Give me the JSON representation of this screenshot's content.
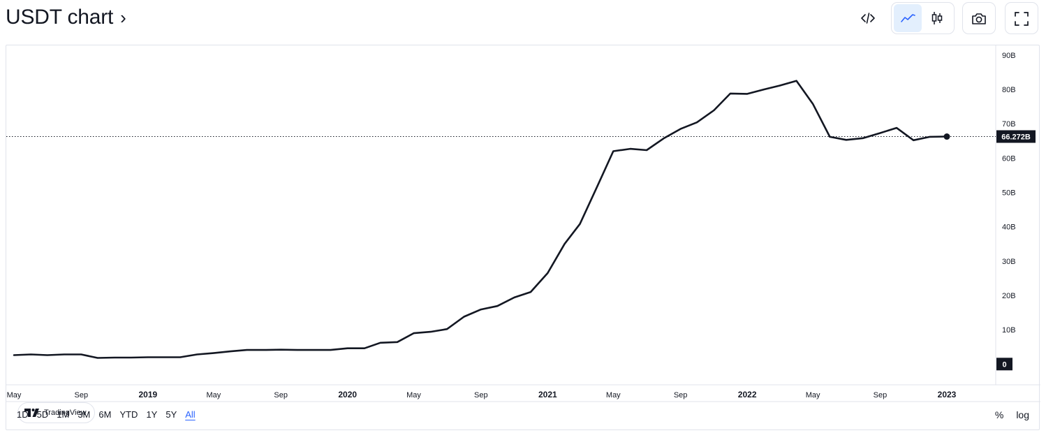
{
  "header": {
    "title": "USDT chart",
    "chevron": "›"
  },
  "toolbar": {
    "icons": [
      "embed-code-icon",
      "line-chart-icon",
      "candlestick-icon",
      "camera-icon",
      "fullscreen-icon"
    ],
    "accent": "#2962ff"
  },
  "watermark": {
    "text": "TradingView"
  },
  "range_buttons": [
    "1D",
    "5D",
    "1M",
    "3M",
    "6M",
    "YTD",
    "1Y",
    "5Y",
    "All"
  ],
  "active_range": "All",
  "scale_controls": {
    "percent": "%",
    "log": "log"
  },
  "chart_data": {
    "type": "line",
    "series": [
      {
        "color": "#131722",
        "x": [
          "2018-05-01",
          "2018-06-01",
          "2018-07-01",
          "2018-08-01",
          "2018-09-01",
          "2018-10-01",
          "2018-11-01",
          "2018-12-01",
          "2019-01-01",
          "2019-02-01",
          "2019-03-01",
          "2019-04-01",
          "2019-05-01",
          "2019-06-01",
          "2019-07-01",
          "2019-08-01",
          "2019-09-01",
          "2019-10-01",
          "2019-11-01",
          "2019-12-01",
          "2020-01-01",
          "2020-02-01",
          "2020-03-01",
          "2020-04-01",
          "2020-05-01",
          "2020-06-01",
          "2020-07-01",
          "2020-08-01",
          "2020-09-01",
          "2020-10-01",
          "2020-11-01",
          "2020-12-01",
          "2021-01-01",
          "2021-02-01",
          "2021-03-01",
          "2021-04-01",
          "2021-05-01",
          "2021-06-01",
          "2021-07-01",
          "2021-08-01",
          "2021-09-01",
          "2021-10-01",
          "2021-11-01",
          "2021-12-01",
          "2022-01-01",
          "2022-02-01",
          "2022-03-01",
          "2022-04-01",
          "2022-05-01",
          "2022-06-01",
          "2022-07-01",
          "2022-08-01",
          "2022-09-01",
          "2022-10-01",
          "2022-11-01",
          "2022-12-01",
          "2023-01-01"
        ],
        "values": [
          2.6,
          2.8,
          2.6,
          2.8,
          2.8,
          1.8,
          1.9,
          1.9,
          2.0,
          2.0,
          2.0,
          2.8,
          3.2,
          3.7,
          4.1,
          4.1,
          4.2,
          4.1,
          4.1,
          4.1,
          4.6,
          4.6,
          6.2,
          6.4,
          9.0,
          9.4,
          10.2,
          13.8,
          15.9,
          16.9,
          19.4,
          21.0,
          26.5,
          35.0,
          40.8,
          51.5,
          62.0,
          62.7,
          62.3,
          65.7,
          68.5,
          70.4,
          73.9,
          78.8,
          78.7,
          80.0,
          81.1,
          82.5,
          75.8,
          66.2,
          65.3,
          65.8,
          67.3,
          68.8,
          65.2,
          66.2,
          66.272
        ]
      }
    ],
    "last_value": 66.272,
    "last_value_label": "66.272B",
    "ylim": [
      0,
      90
    ],
    "y_ticks": [
      {
        "value": 90,
        "label": "90B"
      },
      {
        "value": 80,
        "label": "80B"
      },
      {
        "value": 70,
        "label": "70B"
      },
      {
        "value": 60,
        "label": "60B"
      },
      {
        "value": 50,
        "label": "50B"
      },
      {
        "value": 40,
        "label": "40B"
      },
      {
        "value": 30,
        "label": "30B"
      },
      {
        "value": 20,
        "label": "20B"
      },
      {
        "value": 10,
        "label": "10B"
      }
    ],
    "zero_label": "0",
    "x_ticks": [
      {
        "date": "2018-05-01",
        "label": "May",
        "bold": false
      },
      {
        "date": "2018-09-01",
        "label": "Sep",
        "bold": false
      },
      {
        "date": "2019-01-01",
        "label": "2019",
        "bold": true
      },
      {
        "date": "2019-05-01",
        "label": "May",
        "bold": false
      },
      {
        "date": "2019-09-01",
        "label": "Sep",
        "bold": false
      },
      {
        "date": "2020-01-01",
        "label": "2020",
        "bold": true
      },
      {
        "date": "2020-05-01",
        "label": "May",
        "bold": false
      },
      {
        "date": "2020-09-01",
        "label": "Sep",
        "bold": false
      },
      {
        "date": "2021-01-01",
        "label": "2021",
        "bold": true
      },
      {
        "date": "2021-05-01",
        "label": "May",
        "bold": false
      },
      {
        "date": "2021-09-01",
        "label": "Sep",
        "bold": false
      },
      {
        "date": "2022-01-01",
        "label": "2022",
        "bold": true
      },
      {
        "date": "2022-05-01",
        "label": "May",
        "bold": false
      },
      {
        "date": "2022-09-01",
        "label": "Sep",
        "bold": false
      },
      {
        "date": "2023-01-01",
        "label": "2023",
        "bold": true
      }
    ],
    "grid": false,
    "price_line": "dotted"
  }
}
